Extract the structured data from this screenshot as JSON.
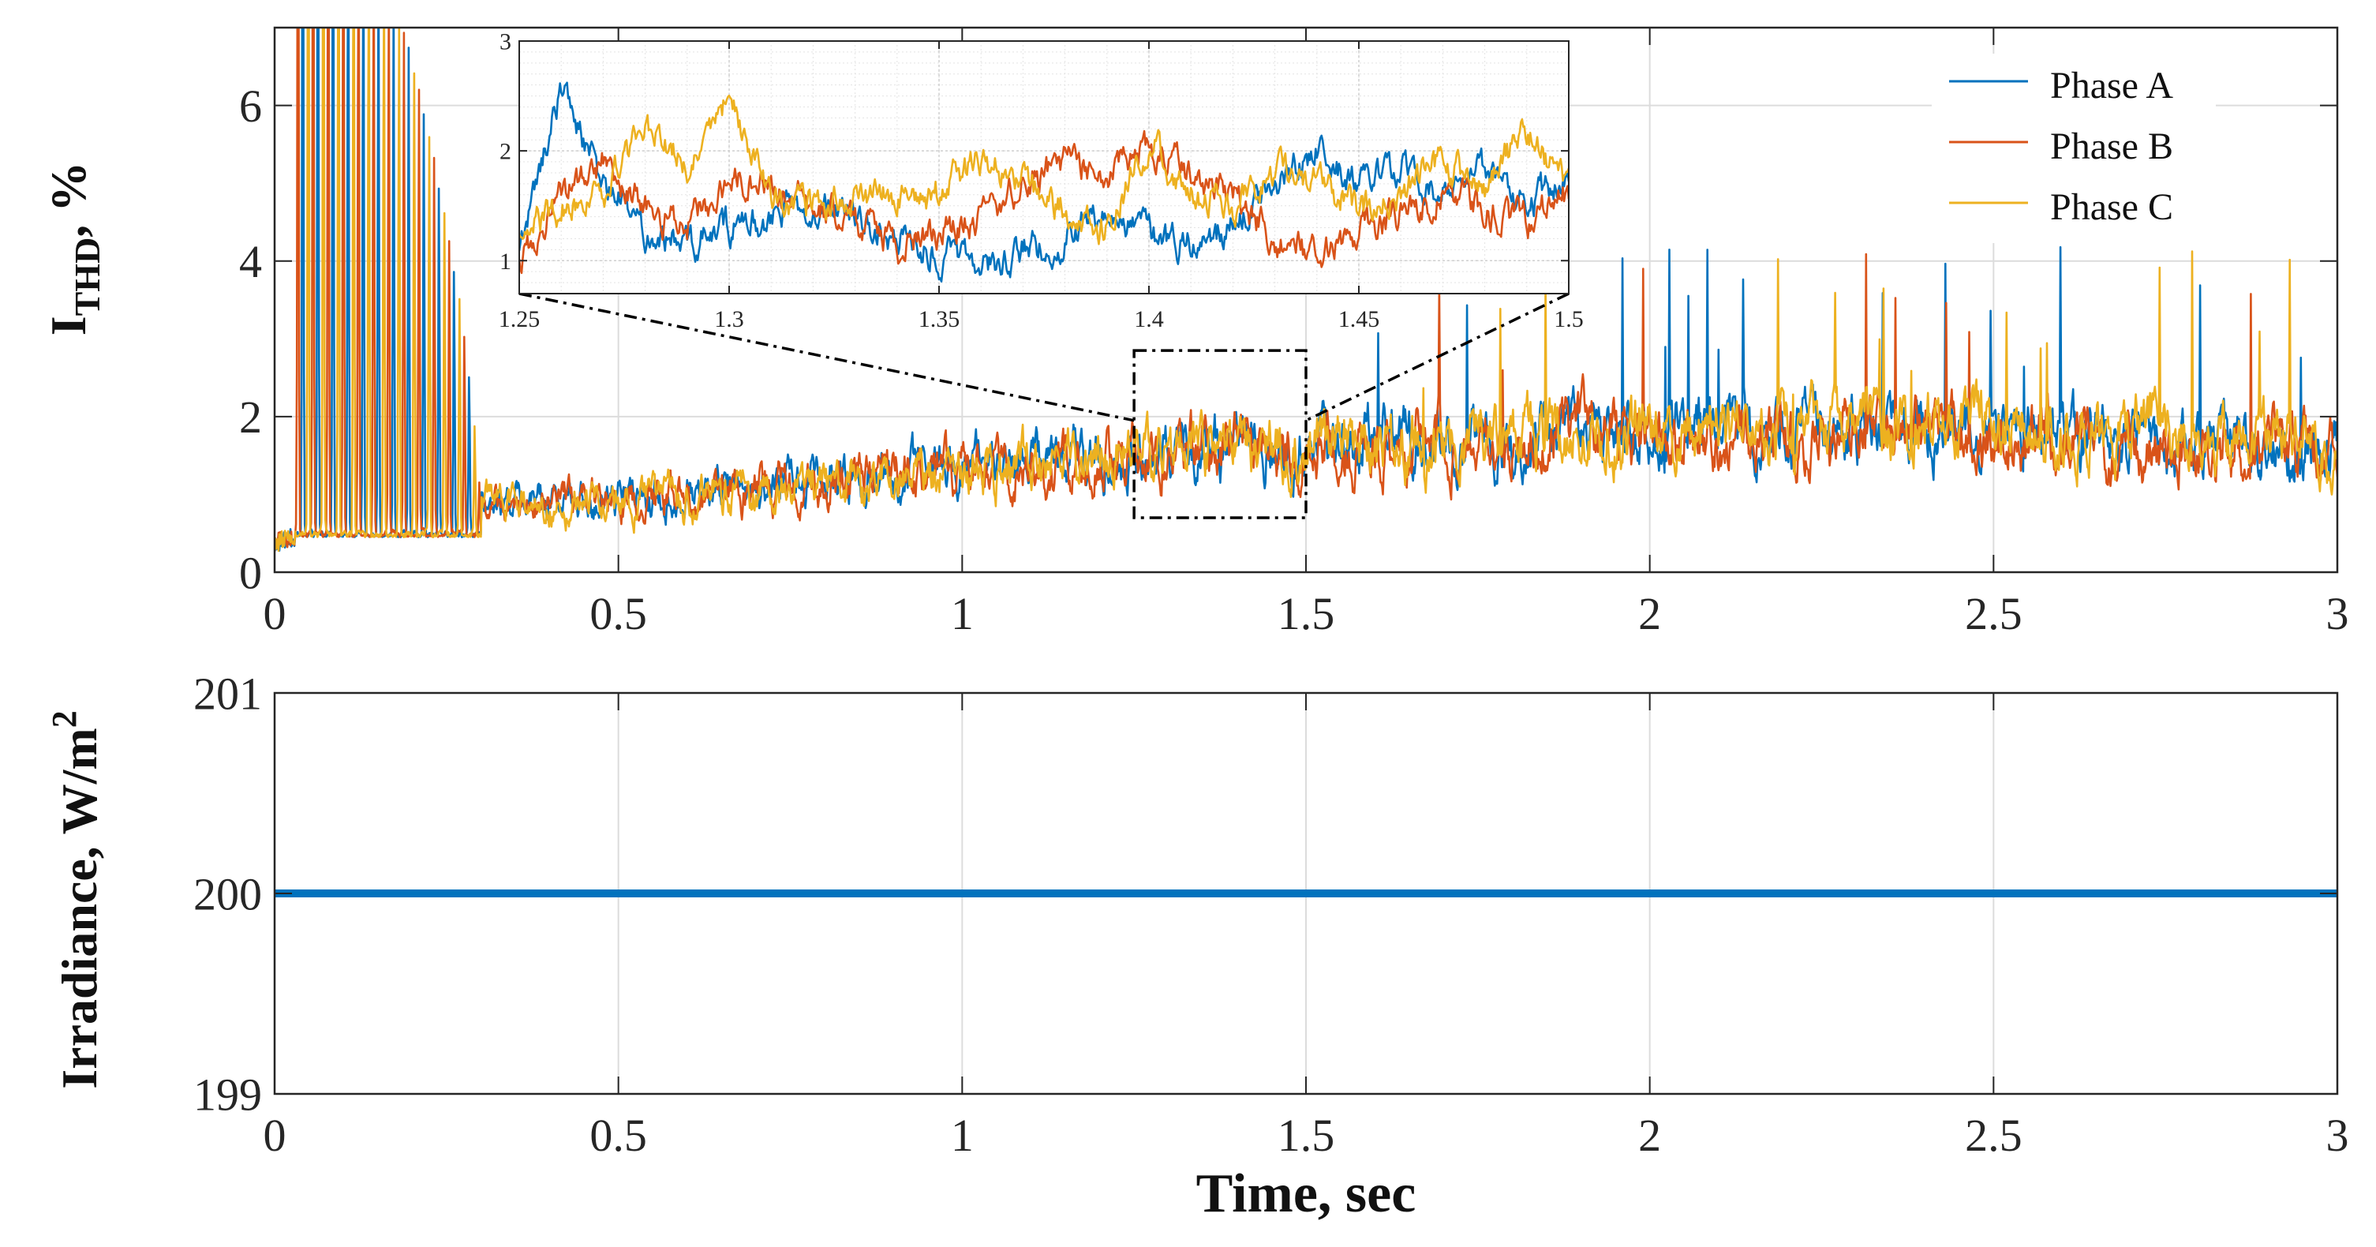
{
  "chart_data": [
    {
      "id": "thd",
      "type": "line",
      "ylabel_main": "I",
      "ylabel_sub": "THD",
      "ylabel_suffix": ", %",
      "xlabel": "",
      "xlim": [
        0,
        3
      ],
      "ylim": [
        0,
        7
      ],
      "grid": true,
      "x_ticks": [
        "0",
        "0.5",
        "1",
        "1.5",
        "2",
        "2.5",
        "3"
      ],
      "y_ticks": [
        "0",
        "2",
        "4",
        "6"
      ],
      "legend_position": "top-right",
      "series": [
        {
          "name": "Phase A",
          "color": "#0072BD",
          "trend": [
            [
              0,
              0.3
            ],
            [
              0.3,
              0.9
            ],
            [
              0.6,
              1.0
            ],
            [
              0.9,
              1.3
            ],
            [
              1.2,
              1.5
            ],
            [
              1.5,
              1.7
            ],
            [
              2.0,
              1.8
            ],
            [
              2.5,
              1.8
            ],
            [
              3.0,
              1.6
            ]
          ]
        },
        {
          "name": "Phase B",
          "color": "#D95319",
          "trend": [
            [
              0,
              0.3
            ],
            [
              0.3,
              0.85
            ],
            [
              0.6,
              1.0
            ],
            [
              0.9,
              1.25
            ],
            [
              1.2,
              1.5
            ],
            [
              1.5,
              1.6
            ],
            [
              2.0,
              1.75
            ],
            [
              2.5,
              1.7
            ],
            [
              3.0,
              1.5
            ]
          ]
        },
        {
          "name": "Phase C",
          "color": "#EDB120",
          "trend": [
            [
              0,
              0.3
            ],
            [
              0.3,
              0.85
            ],
            [
              0.6,
              0.95
            ],
            [
              0.9,
              1.2
            ],
            [
              1.2,
              1.45
            ],
            [
              1.5,
              1.65
            ],
            [
              2.0,
              1.8
            ],
            [
              2.5,
              1.9
            ],
            [
              3.0,
              1.6
            ]
          ]
        }
      ],
      "startup_transient": {
        "x_range": [
          0.03,
          0.3
        ],
        "peak": 7
      },
      "zoom_box": {
        "x_range": [
          1.25,
          1.5
        ],
        "y_range": [
          0.7,
          2.85
        ]
      }
    },
    {
      "id": "thd-inset",
      "type": "line",
      "xlim": [
        1.25,
        1.5
      ],
      "ylim": [
        0.7,
        3
      ],
      "grid": true,
      "minor_grid": true,
      "x_ticks": [
        "1.25",
        "1.3",
        "1.35",
        "1.4",
        "1.45",
        "1.5"
      ],
      "y_ticks": [
        "1",
        "2",
        "3"
      ],
      "series": [
        {
          "name": "Phase A",
          "color": "#0072BD",
          "points": [
            [
              1.25,
              1.1
            ],
            [
              1.26,
              2.6
            ],
            [
              1.27,
              1.7
            ],
            [
              1.28,
              1.3
            ],
            [
              1.29,
              1.15
            ],
            [
              1.3,
              1.3
            ],
            [
              1.31,
              1.4
            ],
            [
              1.32,
              1.55
            ],
            [
              1.33,
              1.4
            ],
            [
              1.34,
              1.2
            ],
            [
              1.35,
              1.05
            ],
            [
              1.36,
              0.95
            ],
            [
              1.37,
              1.1
            ],
            [
              1.38,
              1.2
            ],
            [
              1.39,
              1.5
            ],
            [
              1.4,
              1.2
            ],
            [
              1.41,
              1.15
            ],
            [
              1.42,
              1.3
            ],
            [
              1.43,
              1.7
            ],
            [
              1.44,
              2.0
            ],
            [
              1.45,
              1.7
            ],
            [
              1.46,
              1.85
            ],
            [
              1.47,
              1.6
            ],
            [
              1.48,
              1.8
            ],
            [
              1.49,
              1.5
            ],
            [
              1.5,
              1.8
            ]
          ]
        },
        {
          "name": "Phase B",
          "color": "#D95319",
          "points": [
            [
              1.25,
              1.0
            ],
            [
              1.26,
              1.6
            ],
            [
              1.27,
              1.9
            ],
            [
              1.28,
              1.5
            ],
            [
              1.29,
              1.3
            ],
            [
              1.3,
              1.8
            ],
            [
              1.31,
              1.7
            ],
            [
              1.32,
              1.5
            ],
            [
              1.33,
              1.35
            ],
            [
              1.34,
              1.1
            ],
            [
              1.35,
              1.25
            ],
            [
              1.36,
              1.4
            ],
            [
              1.37,
              1.7
            ],
            [
              1.38,
              1.9
            ],
            [
              1.39,
              1.8
            ],
            [
              1.4,
              2.05
            ],
            [
              1.41,
              1.8
            ],
            [
              1.42,
              1.6
            ],
            [
              1.43,
              1.2
            ],
            [
              1.44,
              1.05
            ],
            [
              1.45,
              1.3
            ],
            [
              1.46,
              1.4
            ],
            [
              1.47,
              1.6
            ],
            [
              1.48,
              1.45
            ],
            [
              1.49,
              1.35
            ],
            [
              1.5,
              1.6
            ]
          ]
        },
        {
          "name": "Phase C",
          "color": "#EDB120",
          "points": [
            [
              1.25,
              1.2
            ],
            [
              1.26,
              1.5
            ],
            [
              1.27,
              1.6
            ],
            [
              1.28,
              2.2
            ],
            [
              1.29,
              1.9
            ],
            [
              1.3,
              2.45
            ],
            [
              1.31,
              1.6
            ],
            [
              1.32,
              1.5
            ],
            [
              1.33,
              1.6
            ],
            [
              1.34,
              1.55
            ],
            [
              1.35,
              1.6
            ],
            [
              1.36,
              1.9
            ],
            [
              1.37,
              1.7
            ],
            [
              1.38,
              1.45
            ],
            [
              1.39,
              1.3
            ],
            [
              1.4,
              2.1
            ],
            [
              1.41,
              1.6
            ],
            [
              1.42,
              1.5
            ],
            [
              1.43,
              1.8
            ],
            [
              1.44,
              1.7
            ],
            [
              1.45,
              1.45
            ],
            [
              1.46,
              1.6
            ],
            [
              1.47,
              1.9
            ],
            [
              1.48,
              1.7
            ],
            [
              1.49,
              2.2
            ],
            [
              1.5,
              1.6
            ]
          ]
        }
      ]
    },
    {
      "id": "irradiance",
      "type": "line",
      "ylabel": "Irradiance, W/m",
      "ylabel_sup": "2",
      "xlabel": "Time, sec",
      "xlim": [
        0,
        3
      ],
      "ylim": [
        199,
        201
      ],
      "grid": true,
      "x_ticks": [
        "0",
        "0.5",
        "1",
        "1.5",
        "2",
        "2.5",
        "3"
      ],
      "y_ticks": [
        "199",
        "200",
        "201"
      ],
      "series": [
        {
          "name": "Irradiance",
          "color": "#0072BD",
          "points": [
            [
              0,
              200
            ],
            [
              3,
              200
            ]
          ]
        }
      ]
    }
  ]
}
